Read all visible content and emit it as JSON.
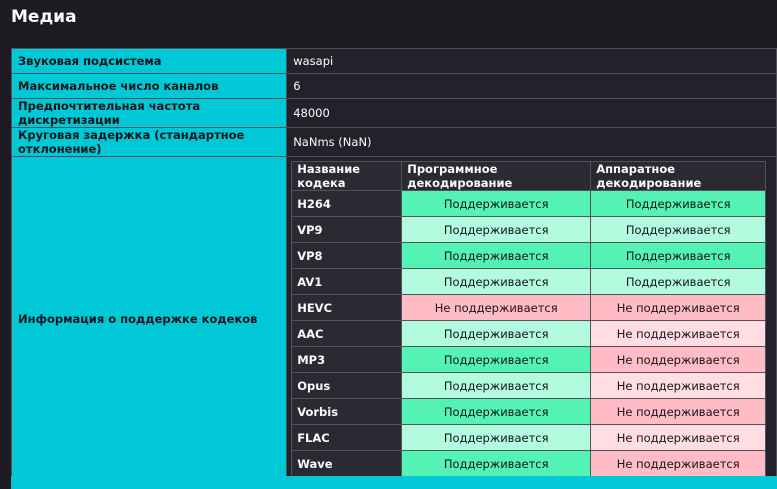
{
  "header": {
    "title": "Медиа"
  },
  "table": {
    "rows": [
      [
        "Звуковая подсистема",
        "wasapi"
      ],
      [
        "Максимальное число каналов",
        "6"
      ],
      [
        "Предпочтительная частота дискретизации",
        "48000"
      ],
      [
        "Круговая задержка (стандартное отклонение)",
        "NaNms (NaN)"
      ]
    ],
    "codecs": {
      "label": "Информация о поддержке кодеков",
      "headers": [
        "Название кодека",
        "Программное декодирование",
        "Аппаратное декодирование"
      ],
      "rows": [
        [
          "H264",
          "Поддерживается",
          "Поддерживается"
        ],
        [
          "VP9",
          "Поддерживается",
          "Поддерживается"
        ],
        [
          "VP8",
          "Поддерживается",
          "Поддерживается"
        ],
        [
          "AV1",
          "Поддерживается",
          "Поддерживается"
        ],
        [
          "HEVC",
          "Не поддерживается",
          "Не поддерживается"
        ],
        [
          "AAC",
          "Поддерживается",
          "Не поддерживается"
        ],
        [
          "MP3",
          "Поддерживается",
          "Не поддерживается"
        ],
        [
          "Opus",
          "Поддерживается",
          "Не поддерживается"
        ],
        [
          "Vorbis",
          "Поддерживается",
          "Не поддерживается"
        ],
        [
          "FLAC",
          "Поддерживается",
          "Не поддерживается"
        ],
        [
          "Wave",
          "Поддерживается",
          "Не поддерживается"
        ]
      ]
    }
  }
}
